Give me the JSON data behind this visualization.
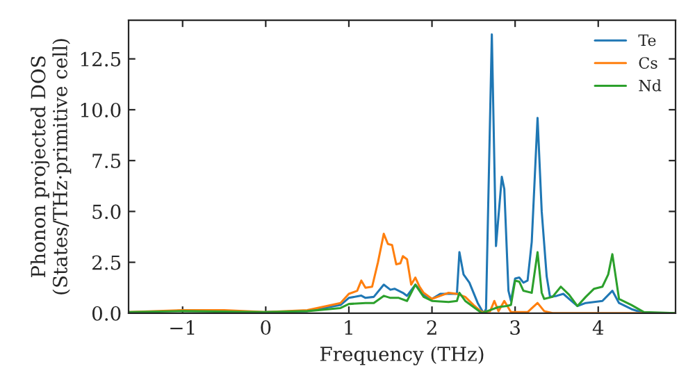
{
  "chart_data": {
    "type": "line",
    "xlabel": "Frequency (THz)",
    "ylabel": "Phonon projected DOS\n(States/THz·primitive cell)",
    "xlim": [
      -1.65,
      4.93
    ],
    "ylim": [
      0,
      14.4
    ],
    "xticks": [
      {
        "value": -1,
        "label": "−1"
      },
      0,
      1,
      2,
      3,
      4
    ],
    "yticks": [
      {
        "value": 0,
        "label": "0.0"
      },
      {
        "value": 2.5,
        "label": "2.5"
      },
      {
        "value": 5,
        "label": "5.0"
      },
      {
        "value": 7.5,
        "label": "7.5"
      },
      {
        "value": 10,
        "label": "10.0"
      },
      {
        "value": 12.5,
        "label": "12.5"
      }
    ],
    "grid": false,
    "legend": "top right",
    "marker": "none",
    "line_style": "solid",
    "series": [
      {
        "name": "Te",
        "color": "#1f77b4",
        "x": [
          0,
          0.5,
          0.9,
          1.0,
          1.15,
          1.2,
          1.3,
          1.42,
          1.5,
          1.55,
          1.65,
          1.7,
          1.8,
          1.9,
          2.0,
          2.1,
          2.3,
          2.33,
          2.38,
          2.45,
          2.55,
          2.62,
          2.65,
          2.72,
          2.77,
          2.84,
          2.87,
          2.92,
          2.95,
          3.0,
          3.05,
          3.1,
          3.15,
          3.2,
          3.27,
          3.32,
          3.38,
          3.42,
          3.5,
          3.58,
          3.65,
          3.75,
          3.85,
          3.95,
          4.05,
          4.17,
          4.25,
          4.4,
          4.55,
          4.93
        ],
        "values": [
          0.05,
          0.1,
          0.4,
          0.75,
          0.86,
          0.75,
          0.8,
          1.4,
          1.15,
          1.2,
          1.0,
          0.85,
          1.4,
          0.9,
          0.7,
          0.95,
          0.95,
          3.0,
          1.9,
          1.5,
          0.5,
          0.0,
          0.2,
          13.7,
          3.3,
          6.7,
          6.1,
          1.1,
          0.6,
          1.7,
          1.75,
          1.5,
          1.6,
          3.5,
          9.6,
          5.0,
          1.8,
          0.8,
          0.85,
          0.95,
          0.7,
          0.35,
          0.5,
          0.55,
          0.6,
          1.1,
          0.5,
          0.2,
          0.0,
          0.0
        ]
      },
      {
        "name": "Cs",
        "color": "#ff7f0e",
        "x": [
          -1.65,
          -1,
          -0.5,
          0,
          0.5,
          0.9,
          1.0,
          1.1,
          1.15,
          1.2,
          1.28,
          1.35,
          1.42,
          1.47,
          1.52,
          1.57,
          1.62,
          1.65,
          1.7,
          1.75,
          1.8,
          1.85,
          1.9,
          2.0,
          2.1,
          2.2,
          2.3,
          2.4,
          2.5,
          2.6,
          2.7,
          2.75,
          2.8,
          2.87,
          2.95,
          3.15,
          3.27,
          3.35,
          3.45,
          4.93
        ],
        "values": [
          0.05,
          0.15,
          0.15,
          0.05,
          0.15,
          0.5,
          0.95,
          1.1,
          1.6,
          1.25,
          1.3,
          2.5,
          3.9,
          3.4,
          3.35,
          2.4,
          2.45,
          2.8,
          2.65,
          1.4,
          1.75,
          1.3,
          1.0,
          0.7,
          0.85,
          1.0,
          0.95,
          0.8,
          0.4,
          0.05,
          0.1,
          0.6,
          0.1,
          0.6,
          0.05,
          0.05,
          0.5,
          0.1,
          0.0,
          0.0
        ]
      },
      {
        "name": "Nd",
        "color": "#2ca02c",
        "x": [
          -1.65,
          -1,
          0,
          0.5,
          0.9,
          1.0,
          1.2,
          1.3,
          1.42,
          1.5,
          1.6,
          1.7,
          1.8,
          1.9,
          2.0,
          2.2,
          2.3,
          2.33,
          2.4,
          2.5,
          2.6,
          2.7,
          2.8,
          2.9,
          2.95,
          3.0,
          3.05,
          3.1,
          3.2,
          3.27,
          3.32,
          3.35,
          3.45,
          3.55,
          3.65,
          3.75,
          3.85,
          3.95,
          4.05,
          4.12,
          4.17,
          4.25,
          4.4,
          4.55,
          4.93
        ],
        "values": [
          0.05,
          0.1,
          0.05,
          0.1,
          0.25,
          0.45,
          0.5,
          0.5,
          0.85,
          0.75,
          0.75,
          0.6,
          1.4,
          0.8,
          0.6,
          0.55,
          0.6,
          1.0,
          0.6,
          0.3,
          0.0,
          0.15,
          0.3,
          0.35,
          0.4,
          1.6,
          1.55,
          1.1,
          1.0,
          3.0,
          1.0,
          0.7,
          0.8,
          1.3,
          0.9,
          0.35,
          0.8,
          1.2,
          1.3,
          1.9,
          2.9,
          0.7,
          0.4,
          0.05,
          0.0
        ]
      }
    ]
  }
}
